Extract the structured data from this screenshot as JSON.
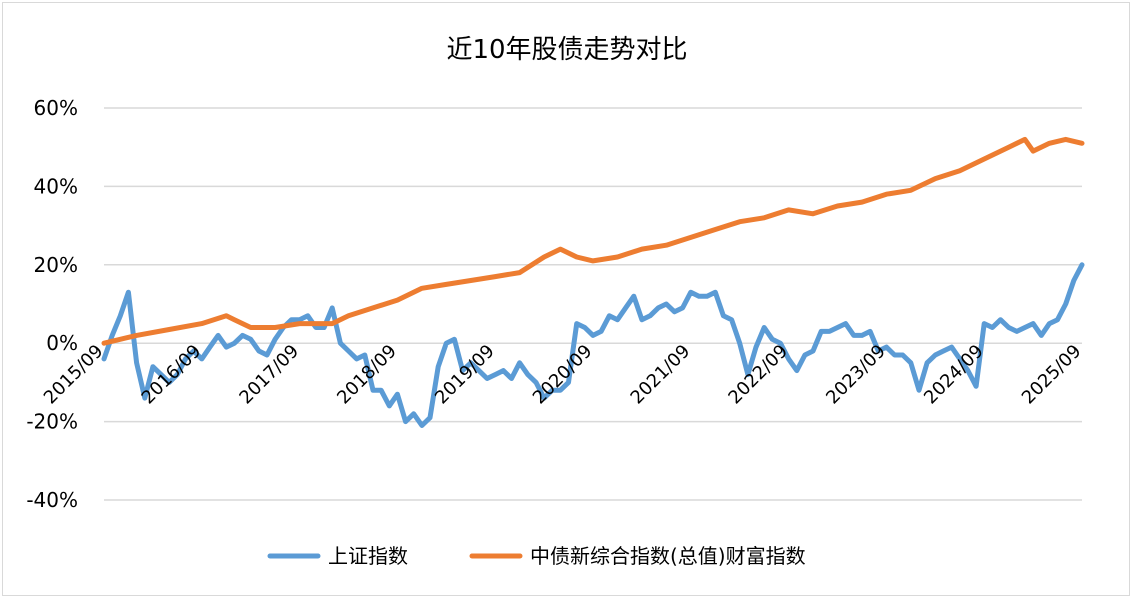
{
  "chart_data": {
    "type": "line",
    "title": "近10年股债走势对比",
    "xlabel": "",
    "ylabel": "",
    "x_start": "2015/09",
    "x_end": "2025/09",
    "x_tick_labels": [
      "2015/09",
      "2016/09",
      "2017/09",
      "2018/09",
      "2019/09",
      "2020/09",
      "2021/09",
      "2022/09",
      "2023/09",
      "2024/09",
      "2025/09"
    ],
    "y_tick_labels": [
      "60%",
      "40%",
      "20%",
      "0%",
      "-20%",
      "-40%"
    ],
    "y_ticks": [
      60,
      40,
      20,
      0,
      -20,
      -40
    ],
    "ylim": [
      -40,
      60
    ],
    "grid": true,
    "legend_position": "bottom",
    "series": [
      {
        "name": "上证指数",
        "color": "#5b9bd5",
        "points": [
          [
            "2015/09",
            -4
          ],
          [
            "2015/10",
            2
          ],
          [
            "2015/11",
            7
          ],
          [
            "2015/12",
            13
          ],
          [
            "2016/01",
            -5
          ],
          [
            "2016/02",
            -14
          ],
          [
            "2016/03",
            -6
          ],
          [
            "2016/04",
            -8
          ],
          [
            "2016/05",
            -10
          ],
          [
            "2016/06",
            -8
          ],
          [
            "2016/07",
            -4
          ],
          [
            "2016/08",
            -2
          ],
          [
            "2016/09",
            -4
          ],
          [
            "2016/10",
            -1
          ],
          [
            "2016/11",
            2
          ],
          [
            "2016/12",
            -1
          ],
          [
            "2017/01",
            0
          ],
          [
            "2017/02",
            2
          ],
          [
            "2017/03",
            1
          ],
          [
            "2017/04",
            -2
          ],
          [
            "2017/05",
            -3
          ],
          [
            "2017/06",
            1
          ],
          [
            "2017/07",
            4
          ],
          [
            "2017/08",
            6
          ],
          [
            "2017/09",
            6
          ],
          [
            "2017/10",
            7
          ],
          [
            "2017/11",
            4
          ],
          [
            "2017/12",
            4
          ],
          [
            "2018/01",
            9
          ],
          [
            "2018/02",
            0
          ],
          [
            "2018/03",
            -2
          ],
          [
            "2018/04",
            -4
          ],
          [
            "2018/05",
            -3
          ],
          [
            "2018/06",
            -12
          ],
          [
            "2018/07",
            -12
          ],
          [
            "2018/08",
            -16
          ],
          [
            "2018/09",
            -13
          ],
          [
            "2018/10",
            -20
          ],
          [
            "2018/11",
            -18
          ],
          [
            "2018/12",
            -21
          ],
          [
            "2019/01",
            -19
          ],
          [
            "2019/02",
            -6
          ],
          [
            "2019/03",
            0
          ],
          [
            "2019/04",
            1
          ],
          [
            "2019/05",
            -7
          ],
          [
            "2019/06",
            -5
          ],
          [
            "2019/07",
            -7
          ],
          [
            "2019/08",
            -9
          ],
          [
            "2019/09",
            -8
          ],
          [
            "2019/10",
            -7
          ],
          [
            "2019/11",
            -9
          ],
          [
            "2019/12",
            -5
          ],
          [
            "2020/01",
            -8
          ],
          [
            "2020/02",
            -10
          ],
          [
            "2020/03",
            -14
          ],
          [
            "2020/04",
            -12
          ],
          [
            "2020/05",
            -12
          ],
          [
            "2020/06",
            -10
          ],
          [
            "2020/07",
            5
          ],
          [
            "2020/08",
            4
          ],
          [
            "2020/09",
            2
          ],
          [
            "2020/10",
            3
          ],
          [
            "2020/11",
            7
          ],
          [
            "2020/12",
            6
          ],
          [
            "2021/01",
            9
          ],
          [
            "2021/02",
            12
          ],
          [
            "2021/03",
            6
          ],
          [
            "2021/04",
            7
          ],
          [
            "2021/05",
            9
          ],
          [
            "2021/06",
            10
          ],
          [
            "2021/07",
            8
          ],
          [
            "2021/08",
            9
          ],
          [
            "2021/09",
            13
          ],
          [
            "2021/10",
            12
          ],
          [
            "2021/11",
            12
          ],
          [
            "2021/12",
            13
          ],
          [
            "2022/01",
            7
          ],
          [
            "2022/02",
            6
          ],
          [
            "2022/03",
            0
          ],
          [
            "2022/04",
            -8
          ],
          [
            "2022/05",
            -1
          ],
          [
            "2022/06",
            4
          ],
          [
            "2022/07",
            1
          ],
          [
            "2022/08",
            0
          ],
          [
            "2022/09",
            -4
          ],
          [
            "2022/10",
            -7
          ],
          [
            "2022/11",
            -3
          ],
          [
            "2022/12",
            -2
          ],
          [
            "2023/01",
            3
          ],
          [
            "2023/02",
            3
          ],
          [
            "2023/03",
            4
          ],
          [
            "2023/04",
            5
          ],
          [
            "2023/05",
            2
          ],
          [
            "2023/06",
            2
          ],
          [
            "2023/07",
            3
          ],
          [
            "2023/08",
            -2
          ],
          [
            "2023/09",
            -1
          ],
          [
            "2023/10",
            -3
          ],
          [
            "2023/11",
            -3
          ],
          [
            "2023/12",
            -5
          ],
          [
            "2024/01",
            -12
          ],
          [
            "2024/02",
            -5
          ],
          [
            "2024/03",
            -3
          ],
          [
            "2024/04",
            -2
          ],
          [
            "2024/05",
            -1
          ],
          [
            "2024/06",
            -4
          ],
          [
            "2024/07",
            -7
          ],
          [
            "2024/08",
            -11
          ],
          [
            "2024/09",
            5
          ],
          [
            "2024/10",
            4
          ],
          [
            "2024/11",
            6
          ],
          [
            "2024/12",
            4
          ],
          [
            "2025/01",
            3
          ],
          [
            "2025/02",
            4
          ],
          [
            "2025/03",
            5
          ],
          [
            "2025/04",
            2
          ],
          [
            "2025/05",
            5
          ],
          [
            "2025/06",
            6
          ],
          [
            "2025/07",
            10
          ],
          [
            "2025/08",
            16
          ],
          [
            "2025/09",
            20
          ]
        ]
      },
      {
        "name": "中债新综合指数(总值)财富指数",
        "color": "#ed7d31",
        "points": [
          [
            "2015/09",
            0
          ],
          [
            "2016/01",
            2
          ],
          [
            "2016/05",
            3.5
          ],
          [
            "2016/09",
            5
          ],
          [
            "2016/12",
            7
          ],
          [
            "2017/01",
            6
          ],
          [
            "2017/03",
            4
          ],
          [
            "2017/06",
            4
          ],
          [
            "2017/09",
            5
          ],
          [
            "2017/12",
            5
          ],
          [
            "2018/01",
            5
          ],
          [
            "2018/03",
            7
          ],
          [
            "2018/06",
            9
          ],
          [
            "2018/09",
            11
          ],
          [
            "2018/12",
            14
          ],
          [
            "2019/03",
            15
          ],
          [
            "2019/06",
            16
          ],
          [
            "2019/09",
            17
          ],
          [
            "2019/12",
            18
          ],
          [
            "2020/03",
            22
          ],
          [
            "2020/05",
            24
          ],
          [
            "2020/07",
            22
          ],
          [
            "2020/09",
            21
          ],
          [
            "2020/12",
            22
          ],
          [
            "2021/03",
            24
          ],
          [
            "2021/06",
            25
          ],
          [
            "2021/09",
            27
          ],
          [
            "2021/12",
            29
          ],
          [
            "2022/03",
            31
          ],
          [
            "2022/06",
            32
          ],
          [
            "2022/09",
            34
          ],
          [
            "2022/12",
            33
          ],
          [
            "2023/03",
            35
          ],
          [
            "2023/06",
            36
          ],
          [
            "2023/09",
            38
          ],
          [
            "2023/12",
            39
          ],
          [
            "2024/03",
            42
          ],
          [
            "2024/06",
            44
          ],
          [
            "2024/09",
            47
          ],
          [
            "2024/12",
            50
          ],
          [
            "2025/02",
            52
          ],
          [
            "2025/03",
            49
          ],
          [
            "2025/05",
            51
          ],
          [
            "2025/07",
            52
          ],
          [
            "2025/09",
            51
          ]
        ]
      }
    ]
  }
}
